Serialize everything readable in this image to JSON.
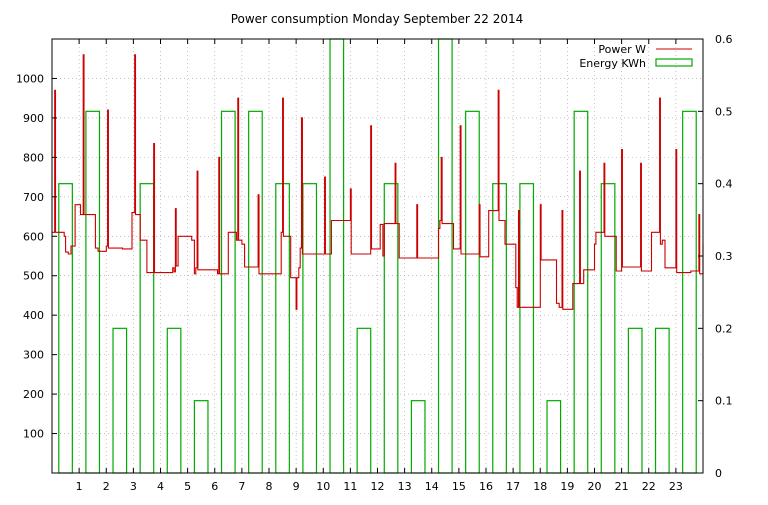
{
  "chart_data": {
    "type": "line",
    "title": "Power consumption Monday September 22 2014",
    "x_ticks": [
      "1",
      "2",
      "3",
      "4",
      "5",
      "6",
      "7",
      "8",
      "9",
      "10",
      "11",
      "12",
      "13",
      "14",
      "15",
      "16",
      "17",
      "18",
      "19",
      "20",
      "21",
      "22",
      "23"
    ],
    "xlim": [
      0,
      24
    ],
    "y_left_ticks": [
      "100",
      "200",
      "300",
      "400",
      "500",
      "600",
      "700",
      "800",
      "900",
      "1000"
    ],
    "ylim_left": [
      0,
      1100
    ],
    "y_right_ticks": [
      "0",
      "0.1",
      "0.2",
      "0.3",
      "0.4",
      "0.5",
      "0.6"
    ],
    "ylim_right": [
      0,
      0.6
    ],
    "grid": true,
    "legend_position": "top-right",
    "series": [
      {
        "name": "Power W",
        "axis": "left",
        "color": "#cc0000",
        "points": [
          [
            0.0,
            610
          ],
          [
            0.05,
            610
          ],
          [
            0.1,
            970
          ],
          [
            0.13,
            610
          ],
          [
            0.4,
            610
          ],
          [
            0.45,
            600
          ],
          [
            0.5,
            560
          ],
          [
            0.6,
            555
          ],
          [
            0.7,
            575
          ],
          [
            0.85,
            680
          ],
          [
            1.0,
            680
          ],
          [
            1.05,
            655
          ],
          [
            1.15,
            1060
          ],
          [
            1.18,
            655
          ],
          [
            1.5,
            655
          ],
          [
            1.6,
            570
          ],
          [
            1.7,
            562
          ],
          [
            1.9,
            562
          ],
          [
            2.0,
            575
          ],
          [
            2.05,
            920
          ],
          [
            2.08,
            570
          ],
          [
            2.4,
            570
          ],
          [
            2.6,
            568
          ],
          [
            2.85,
            568
          ],
          [
            2.95,
            660
          ],
          [
            3.0,
            660
          ],
          [
            3.05,
            1060
          ],
          [
            3.08,
            655
          ],
          [
            3.2,
            655
          ],
          [
            3.25,
            590
          ],
          [
            3.4,
            590
          ],
          [
            3.5,
            508
          ],
          [
            3.7,
            508
          ],
          [
            3.75,
            835
          ],
          [
            3.78,
            508
          ],
          [
            4.2,
            508
          ],
          [
            4.35,
            508
          ],
          [
            4.45,
            520
          ],
          [
            4.5,
            510
          ],
          [
            4.55,
            670
          ],
          [
            4.58,
            525
          ],
          [
            4.65,
            600
          ],
          [
            5.0,
            600
          ],
          [
            5.15,
            590
          ],
          [
            5.25,
            505
          ],
          [
            5.3,
            520
          ],
          [
            5.35,
            765
          ],
          [
            5.38,
            515
          ],
          [
            6.0,
            515
          ],
          [
            6.1,
            505
          ],
          [
            6.15,
            800
          ],
          [
            6.18,
            505
          ],
          [
            6.4,
            505
          ],
          [
            6.5,
            610
          ],
          [
            6.75,
            610
          ],
          [
            6.8,
            590
          ],
          [
            6.85,
            950
          ],
          [
            6.88,
            590
          ],
          [
            7.0,
            580
          ],
          [
            7.1,
            522
          ],
          [
            7.5,
            522
          ],
          [
            7.6,
            705
          ],
          [
            7.63,
            505
          ],
          [
            8.0,
            505
          ],
          [
            8.4,
            505
          ],
          [
            8.45,
            610
          ],
          [
            8.5,
            950
          ],
          [
            8.53,
            600
          ],
          [
            8.7,
            600
          ],
          [
            8.8,
            495
          ],
          [
            8.9,
            495
          ],
          [
            9.0,
            415
          ],
          [
            9.03,
            495
          ],
          [
            9.1,
            520
          ],
          [
            9.15,
            570
          ],
          [
            9.2,
            900
          ],
          [
            9.23,
            555
          ],
          [
            9.5,
            555
          ],
          [
            9.75,
            555
          ],
          [
            9.95,
            555
          ],
          [
            10.05,
            750
          ],
          [
            10.08,
            555
          ],
          [
            10.2,
            555
          ],
          [
            10.3,
            640
          ],
          [
            10.5,
            640
          ],
          [
            10.7,
            640
          ],
          [
            10.9,
            640
          ],
          [
            11.0,
            720
          ],
          [
            11.03,
            555
          ],
          [
            11.5,
            555
          ],
          [
            11.6,
            555
          ],
          [
            11.7,
            555
          ],
          [
            11.75,
            880
          ],
          [
            11.78,
            568
          ],
          [
            12.0,
            568
          ],
          [
            12.1,
            630
          ],
          [
            12.2,
            550
          ],
          [
            12.25,
            632
          ],
          [
            12.5,
            632
          ],
          [
            12.65,
            785
          ],
          [
            12.68,
            632
          ],
          [
            12.8,
            545
          ],
          [
            13.2,
            545
          ],
          [
            13.4,
            545
          ],
          [
            13.45,
            680
          ],
          [
            13.48,
            545
          ],
          [
            14.0,
            545
          ],
          [
            14.2,
            545
          ],
          [
            14.25,
            620
          ],
          [
            14.3,
            640
          ],
          [
            14.35,
            800
          ],
          [
            14.38,
            632
          ],
          [
            14.7,
            632
          ],
          [
            14.8,
            568
          ],
          [
            15.0,
            568
          ],
          [
            15.05,
            880
          ],
          [
            15.08,
            555
          ],
          [
            15.5,
            555
          ],
          [
            15.7,
            555
          ],
          [
            15.75,
            680
          ],
          [
            15.78,
            548
          ],
          [
            16.0,
            548
          ],
          [
            16.1,
            665
          ],
          [
            16.3,
            665
          ],
          [
            16.45,
            970
          ],
          [
            16.48,
            640
          ],
          [
            16.6,
            640
          ],
          [
            16.7,
            580
          ],
          [
            17.0,
            580
          ],
          [
            17.1,
            470
          ],
          [
            17.15,
            420
          ],
          [
            17.2,
            665
          ],
          [
            17.23,
            420
          ],
          [
            17.5,
            420
          ],
          [
            17.9,
            420
          ],
          [
            18.0,
            680
          ],
          [
            18.03,
            540
          ],
          [
            18.4,
            540
          ],
          [
            18.6,
            430
          ],
          [
            18.7,
            420
          ],
          [
            18.8,
            665
          ],
          [
            18.83,
            415
          ],
          [
            19.0,
            415
          ],
          [
            19.2,
            480
          ],
          [
            19.4,
            480
          ],
          [
            19.45,
            765
          ],
          [
            19.48,
            480
          ],
          [
            19.6,
            515
          ],
          [
            19.8,
            515
          ],
          [
            20.0,
            580
          ],
          [
            20.05,
            610
          ],
          [
            20.2,
            610
          ],
          [
            20.35,
            785
          ],
          [
            20.38,
            600
          ],
          [
            20.6,
            600
          ],
          [
            20.8,
            512
          ],
          [
            20.9,
            512
          ],
          [
            21.0,
            820
          ],
          [
            21.03,
            522
          ],
          [
            21.6,
            522
          ],
          [
            21.7,
            785
          ],
          [
            21.73,
            512
          ],
          [
            22.0,
            512
          ],
          [
            22.1,
            610
          ],
          [
            22.3,
            610
          ],
          [
            22.4,
            950
          ],
          [
            22.43,
            580
          ],
          [
            22.5,
            590
          ],
          [
            22.6,
            520
          ],
          [
            22.9,
            520
          ],
          [
            23.0,
            820
          ],
          [
            23.03,
            508
          ],
          [
            23.5,
            508
          ],
          [
            23.55,
            512
          ],
          [
            23.8,
            512
          ],
          [
            23.85,
            655
          ],
          [
            23.88,
            505
          ],
          [
            24.0,
            580
          ]
        ]
      },
      {
        "name": "Energy KWh",
        "axis": "right",
        "color": "#00aa00",
        "style": "boxes",
        "values": [
          0.4,
          0.5,
          0.2,
          0.4,
          0.2,
          0.1,
          0.5,
          0.5,
          0.4,
          0.4,
          0.6,
          0.2,
          0.4,
          0.1,
          0.6,
          0.5,
          0.4,
          0.4,
          0.1,
          0.5,
          0.4,
          0.2,
          0.2,
          0.5
        ]
      }
    ]
  }
}
